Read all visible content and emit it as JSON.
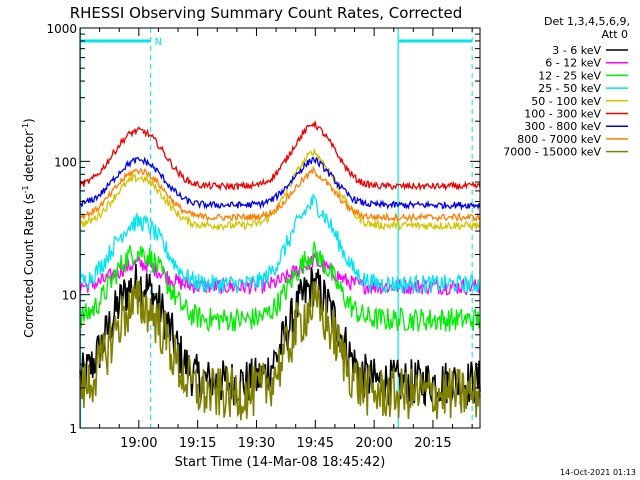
{
  "chart_data": {
    "type": "line",
    "title": "RHESSI Observing Summary Count Rates, Corrected",
    "xlabel": "Start Time (14-Mar-08 18:45:42)",
    "ylabel": "Corrected Count Rate (s⁻¹ detector⁻¹)",
    "ylabel_parts": {
      "base": "Corrected Count Rate (s",
      "sup1": "-1",
      "mid": " detector",
      "sup2": "-1",
      "end": ")"
    },
    "y_scale": "log",
    "ylim": [
      1,
      1000
    ],
    "xlim_minutes_after_1845": [
      0,
      102
    ],
    "x_ticks": [
      {
        "label": "19:00",
        "minute": 15
      },
      {
        "label": "19:15",
        "minute": 30
      },
      {
        "label": "19:30",
        "minute": 45
      },
      {
        "label": "19:45",
        "minute": 60
      },
      {
        "label": "20:00",
        "minute": 75
      },
      {
        "label": "20:15",
        "minute": 90
      }
    ],
    "y_ticks": [
      {
        "label": "1",
        "value": 1
      },
      {
        "label": "10",
        "value": 10
      },
      {
        "label": "100",
        "value": 100
      },
      {
        "label": "1000",
        "value": 1000
      }
    ],
    "legend_header": [
      "Det 1,3,4,5,6,9,",
      "Att 0"
    ],
    "legend_placement": "right",
    "footer_timestamp": "14-Oct-2021 01:13",
    "night_marker_label": "N",
    "markers": {
      "solid_vertical_minutes": [
        0,
        81
      ],
      "dashed_vertical_minutes": [
        18,
        100
      ],
      "bars": [
        [
          0,
          18
        ],
        [
          81,
          100
        ]
      ],
      "color": "#00e5ee"
    },
    "series": [
      {
        "name": "3 - 6 keV",
        "color": "#000000",
        "base": 2.2,
        "p1": 12,
        "p2": 12,
        "noise": 0.35
      },
      {
        "name": "6 - 12 keV",
        "color": "#ff00ff",
        "base": 11.5,
        "p1": 17,
        "p2": 18,
        "noise": 0.12
      },
      {
        "name": "12 - 25 keV",
        "color": "#00ee00",
        "base": 6.5,
        "p1": 21,
        "p2": 21,
        "noise": 0.18
      },
      {
        "name": "25 - 50 keV",
        "color": "#00e5ee",
        "base": 12,
        "p1": 35,
        "p2": 50,
        "noise": 0.14
      },
      {
        "name": "50 - 100 keV",
        "color": "#d4c400",
        "base": 33,
        "p1": 75,
        "p2": 120,
        "noise": 0.06
      },
      {
        "name": "100 - 300 keV",
        "color": "#ee0000",
        "base": 65,
        "p1": 170,
        "p2": 195,
        "noise": 0.05
      },
      {
        "name": "300 - 800 keV",
        "color": "#0000ee",
        "base": 47,
        "p1": 102,
        "p2": 105,
        "noise": 0.05
      },
      {
        "name": "800 - 7000 keV",
        "color": "#ff7f00",
        "base": 38,
        "p1": 85,
        "p2": 85,
        "noise": 0.05
      },
      {
        "name": "7000 - 15000 keV",
        "color": "#808000",
        "base": 1.8,
        "p1": 8.5,
        "p2": 8.5,
        "noise": 0.4
      }
    ]
  }
}
